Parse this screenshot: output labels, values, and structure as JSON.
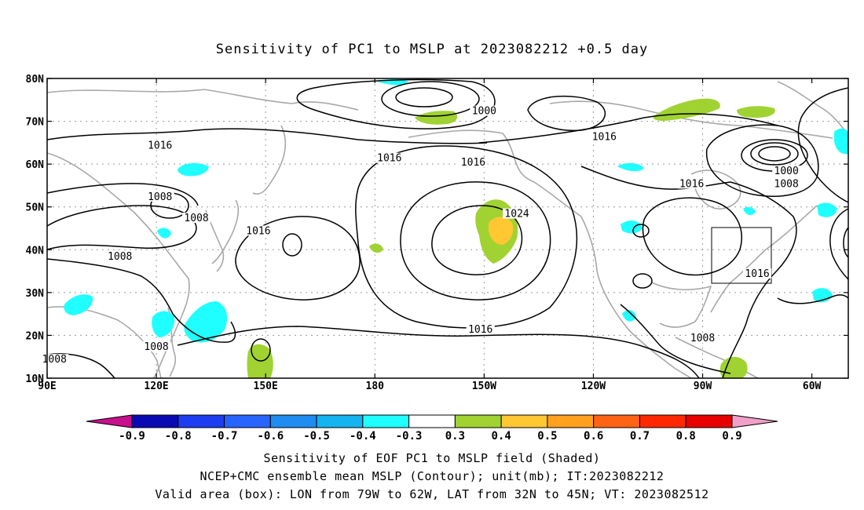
{
  "title": "Sensitivity of PC1 to MSLP at 2023082212 +0.5 day",
  "map": {
    "lon_ticks": [
      "90E",
      "120E",
      "150E",
      "180",
      "150W",
      "120W",
      "90W",
      "60W"
    ],
    "lat_ticks": [
      "80N",
      "70N",
      "60N",
      "50N",
      "40N",
      "30N",
      "20N",
      "10N"
    ],
    "contour_labels": [
      {
        "text": "1000",
        "lon": -150,
        "lat": 72
      },
      {
        "text": "1016",
        "lon": 121,
        "lat": 64
      },
      {
        "text": "1016",
        "lon": -176,
        "lat": 61
      },
      {
        "text": "1016",
        "lon": -153,
        "lat": 60
      },
      {
        "text": "1016",
        "lon": -117,
        "lat": 66
      },
      {
        "text": "1000",
        "lon": -67,
        "lat": 58
      },
      {
        "text": "1008",
        "lon": -67,
        "lat": 55
      },
      {
        "text": "1016",
        "lon": -93,
        "lat": 55
      },
      {
        "text": "1008",
        "lon": 121,
        "lat": 52
      },
      {
        "text": "1008",
        "lon": 131,
        "lat": 47
      },
      {
        "text": "1024",
        "lon": -141,
        "lat": 48
      },
      {
        "text": "1016",
        "lon": 148,
        "lat": 44
      },
      {
        "text": "1008",
        "lon": 110,
        "lat": 38
      },
      {
        "text": "1016",
        "lon": -75,
        "lat": 34
      },
      {
        "text": "1016",
        "lon": -151,
        "lat": 21
      },
      {
        "text": "1008",
        "lon": -90,
        "lat": 19
      },
      {
        "text": "1008",
        "lon": 120,
        "lat": 17
      },
      {
        "text": "1008",
        "lon": 92,
        "lat": 14
      }
    ]
  },
  "colorbar": {
    "labels": [
      "-0.9",
      "-0.8",
      "-0.7",
      "-0.6",
      "-0.5",
      "-0.4",
      "-0.3",
      "0.3",
      "0.4",
      "0.5",
      "0.6",
      "0.7",
      "0.8",
      "0.9"
    ],
    "low_color": "#c8108e",
    "high_color": "#f0a0c8",
    "colors": [
      "#0a0ab4",
      "#1e3cf0",
      "#2864ff",
      "#1e8cf0",
      "#14b4f0",
      "#20ffff",
      "#ffffff",
      "#a0d232",
      "#ffc832",
      "#ffa01e",
      "#ff6414",
      "#ff2800",
      "#e60000"
    ]
  },
  "footer": {
    "line1": "Sensitivity of EOF PC1 to MSLP field (Shaded)",
    "line2": "NCEP+CMC ensemble mean MSLP (Contour); unit(mb); IT:2023082212",
    "line3": "Valid area (box): LON from 79W to 62W, LAT from 32N to 45N; VT: 2023082512"
  }
}
